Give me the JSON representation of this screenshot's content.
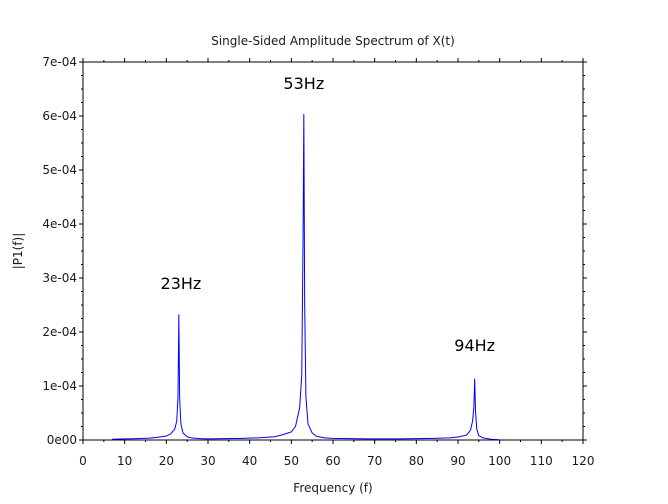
{
  "chart_data": {
    "type": "line",
    "title": "Single-Sided Amplitude Spectrum of X(t)",
    "xlabel": "Frequency (f)",
    "ylabel": "|P1(f)|",
    "xlim": [
      0,
      120
    ],
    "ylim": [
      0,
      0.0007
    ],
    "x_ticks": [
      0,
      10,
      20,
      30,
      40,
      50,
      60,
      70,
      80,
      90,
      100,
      110,
      120
    ],
    "x_tick_labels": [
      "0",
      "10",
      "20",
      "30",
      "40",
      "50",
      "60",
      "70",
      "80",
      "90",
      "100",
      "110",
      "120"
    ],
    "y_ticks": [
      0,
      0.0001,
      0.0002,
      0.0003,
      0.0004,
      0.0005,
      0.0006,
      0.0007
    ],
    "y_tick_labels": [
      "0e00",
      "1e-04",
      "2e-04",
      "3e-04",
      "4e-04",
      "5e-04",
      "6e-04",
      "7e-04"
    ],
    "grid": false,
    "line_color": "#0000ff",
    "series": [
      {
        "x": [
          7,
          10,
          13,
          16,
          18,
          20,
          21,
          22,
          22.5,
          22.8,
          23,
          23.2,
          23.5,
          24,
          25,
          26,
          28,
          30,
          34,
          38,
          42,
          46,
          48,
          50,
          51,
          52,
          52.5,
          52.8,
          53,
          53.2,
          53.5,
          54,
          55,
          56,
          58,
          60,
          64,
          68,
          72,
          76,
          80,
          84,
          88,
          90,
          92,
          93,
          93.5,
          93.8,
          94,
          94.2,
          94.5,
          95,
          96,
          97,
          98,
          100
        ],
        "y": [
          1.5e-06,
          2e-06,
          2.5e-06,
          3.5e-06,
          5e-06,
          7.5e-06,
          1.1e-05,
          2e-05,
          3.5e-05,
          8e-05,
          0.000232,
          7.5e-05,
          3e-05,
          1.3e-05,
          6e-06,
          4e-06,
          2.5e-06,
          2e-06,
          2.5e-06,
          3e-06,
          4e-06,
          6e-06,
          1e-05,
          1.5e-05,
          2.5e-05,
          6e-05,
          0.00012,
          0.00036,
          0.000603,
          0.00025,
          8e-05,
          3e-05,
          1.3e-05,
          7e-06,
          4e-06,
          3e-06,
          2.5e-06,
          2e-06,
          2e-06,
          2e-06,
          2.5e-06,
          3e-06,
          4e-06,
          5.5e-06,
          9e-06,
          1.8e-05,
          3.5e-05,
          6e-05,
          0.000113,
          5.5e-05,
          2e-05,
          8e-06,
          4e-06,
          2.5e-06,
          1.5e-06,
          5e-07
        ]
      }
    ],
    "annotations": [
      {
        "text": "23Hz",
        "x": 23.5,
        "y": 0.00028
      },
      {
        "text": "53Hz",
        "x": 53,
        "y": 0.00065
      },
      {
        "text": "94Hz",
        "x": 94,
        "y": 0.000165
      }
    ]
  }
}
